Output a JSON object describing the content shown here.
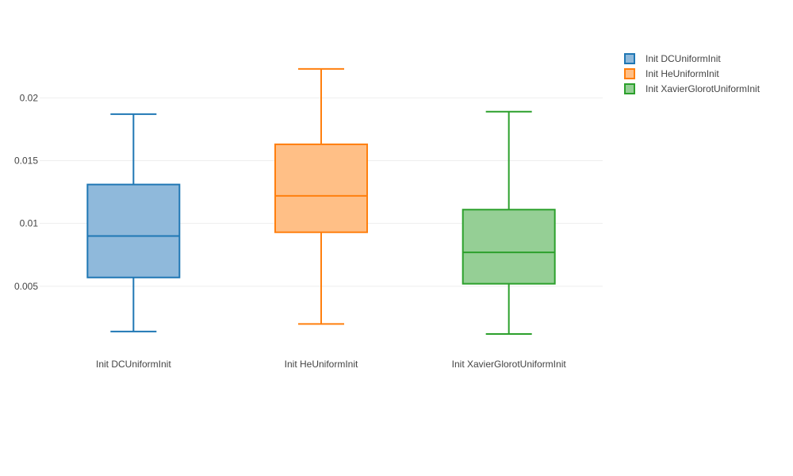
{
  "chart_data": {
    "type": "box",
    "title": "",
    "xlabel": "",
    "ylabel": "",
    "categories": [
      "Init DCUniformInit",
      "Init HeUniformInit",
      "Init XavierGlorotUniformInit"
    ],
    "ylim": [
      0.0,
      0.024
    ],
    "yticks": [
      0.005,
      0.01,
      0.015,
      0.02
    ],
    "ytick_labels": [
      "0.005",
      "0.01",
      "0.015",
      "0.02"
    ],
    "grid": true,
    "legend_position": "top-right",
    "series": [
      {
        "name": "Init DCUniformInit",
        "color": "#1f77b4",
        "fill": "#8fb9db",
        "min": 0.0014,
        "q1": 0.0057,
        "median": 0.009,
        "q3": 0.0131,
        "max": 0.0187
      },
      {
        "name": "Init HeUniformInit",
        "color": "#ff7f0e",
        "fill": "#ffbf86",
        "min": 0.002,
        "q1": 0.0093,
        "median": 0.0122,
        "q3": 0.0163,
        "max": 0.0223
      },
      {
        "name": "Init XavierGlorotUniformInit",
        "color": "#2ca02c",
        "fill": "#95cf95",
        "min": 0.0012,
        "q1": 0.0052,
        "median": 0.0077,
        "q3": 0.0111,
        "max": 0.0189
      }
    ]
  }
}
